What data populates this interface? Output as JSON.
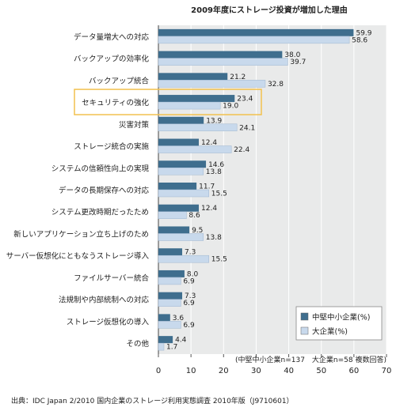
{
  "chart_data": {
    "type": "bar",
    "orientation": "horizontal",
    "title": "2009年度にストレージ投資が増加した理由",
    "categories": [
      "データ量増大への対応",
      "バックアップの効率化",
      "バックアップ統合",
      "セキュリティの強化",
      "災害対策",
      "ストレージ統合の実施",
      "システムの信頼性向上の実現",
      "データの長期保存への対応",
      "システム更改時期だったため",
      "新しいアプリケーション立ち上げのため",
      "サーバー仮想化にともなうストレージ導入",
      "ファイルサーバー統合",
      "法規制や内部統制への対応",
      "ストレージ仮想化の導入",
      "その他"
    ],
    "series": [
      {
        "name": "中堅中小企業(%)",
        "color": "#3f6e8e",
        "values": [
          59.9,
          38.0,
          21.2,
          23.4,
          13.9,
          12.4,
          14.6,
          11.7,
          12.4,
          9.5,
          7.3,
          8.0,
          7.3,
          3.6,
          4.4
        ]
      },
      {
        "name": "大企業(%)",
        "color": "#c8d9ec",
        "values": [
          58.6,
          39.7,
          32.8,
          19.0,
          24.1,
          22.4,
          13.8,
          15.5,
          8.6,
          13.8,
          15.5,
          6.9,
          6.9,
          6.9,
          1.7
        ]
      }
    ],
    "xlim": [
      0,
      70
    ],
    "xticks": [
      0,
      10,
      20,
      30,
      40,
      50,
      60,
      70
    ],
    "highlight_category": "セキュリティの強化",
    "highlight_color": "#f2c14e",
    "legend_position": "bottom-right",
    "note": "(中堅中小企業n=137　大企業n=58 複数回答)",
    "source": "出典：IDC Japan 2/2010 国内企業のストレージ利用実態調査 2010年版（J9710601）"
  }
}
